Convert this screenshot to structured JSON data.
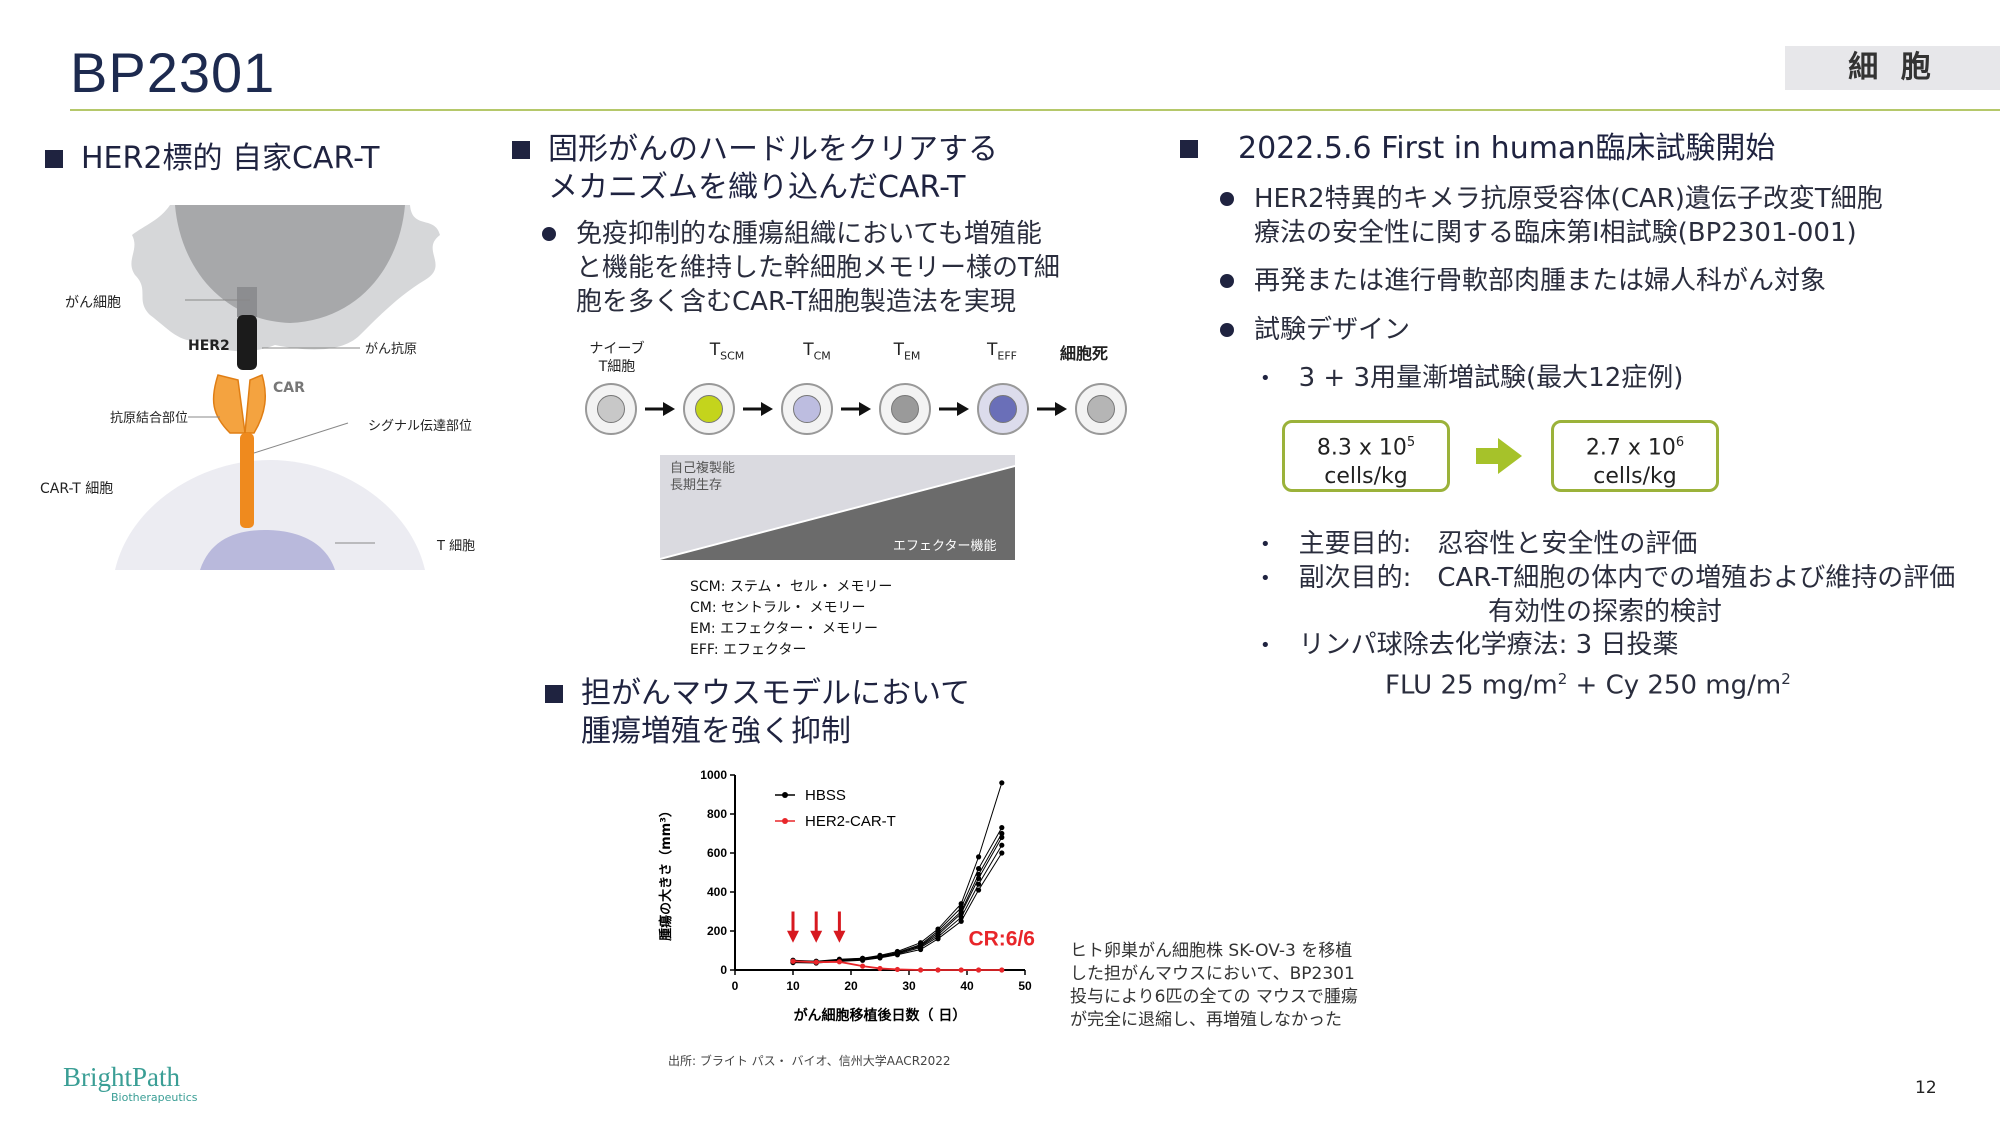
{
  "title": "BP2301",
  "category": "細 胞",
  "page_number": "12",
  "logo": {
    "name": "BrightPath",
    "sub": "Biotherapeutics"
  },
  "left": {
    "heading": "HER2標的 自家CAR-T",
    "labels": {
      "cancer_cell": "がん細胞",
      "her2": "HER2",
      "antigen": "がん抗原",
      "car": "CAR",
      "binding_site": "抗原結合部位",
      "signal_site": "シグナル伝達部位",
      "cart_cell": "CAR-T 細胞",
      "t_cell": "T 細胞"
    }
  },
  "middle": {
    "heading_line1": "固形がんのハードルをクリアする",
    "heading_line2": "メカニズムを織り込んだCAR-T",
    "bullet_line1": "免疫抑制的な腫瘍組織においても増殖能",
    "bullet_line2": "と機能を維持した幹細胞メモリー様のT細",
    "bullet_line3": "胞を多く含むCAR-T細胞製造法を実現",
    "stages": [
      {
        "label": "ナイーブ\nT細胞",
        "main": "",
        "sub": ""
      },
      {
        "label": "",
        "main": "T",
        "sub": "SCM"
      },
      {
        "label": "",
        "main": "T",
        "sub": "CM"
      },
      {
        "label": "",
        "main": "T",
        "sub": "EM"
      },
      {
        "label": "",
        "main": "T",
        "sub": "EFF"
      },
      {
        "label": "細胞死",
        "main": "",
        "sub": ""
      }
    ],
    "gradient_top_line1": "自己複製能",
    "gradient_top_line2": "長期生存",
    "gradient_bottom": "エフェクター機能",
    "legend_lines": [
      "SCM: ステム・ セル・ メモリー",
      "CM:  セントラル・ メモリー",
      "EM:  エフェクター・ メモリー",
      "EFF: エフェクター"
    ],
    "heading2_line1": "担がんマウスモデルにおいて",
    "heading2_line2": "腫瘍増殖を強く抑制",
    "source": "出所: ブライト パス・ バイオ、信州大学AACR2022",
    "chart_note_lines": [
      "ヒト卵巣がん細胞株 SK-OV-3 を移植",
      "した担がんマウスにおいて、BP2301",
      "投与により6匹の全ての マウスで腫瘍",
      "が完全に退縮し、再増殖しなかった"
    ]
  },
  "chart_data": {
    "type": "line",
    "xlabel": "がん細胞移植後日数（ 日）",
    "ylabel": "腫瘍の大きさ（mm³）",
    "xlim": [
      0,
      50
    ],
    "ylim": [
      0,
      1000
    ],
    "xticks": [
      0,
      10,
      20,
      30,
      40,
      50
    ],
    "yticks": [
      0,
      200,
      400,
      600,
      800,
      1000
    ],
    "annotation": "CR:6/6",
    "dosing_days": [
      10,
      14,
      18
    ],
    "colors": {
      "HBSS": "#000000",
      "HER2-CAR-T": "#e8262a",
      "arrow": "#d71920"
    },
    "x": [
      10,
      14,
      18,
      22,
      25,
      28,
      32,
      35,
      39,
      42,
      46
    ],
    "series": [
      {
        "name": "HBSS",
        "group": "HBSS",
        "values": [
          50,
          45,
          55,
          60,
          75,
          95,
          140,
          210,
          340,
          580,
          960
        ]
      },
      {
        "name": "",
        "group": "HBSS",
        "values": [
          45,
          42,
          50,
          58,
          70,
          90,
          130,
          200,
          320,
          520,
          730
        ]
      },
      {
        "name": "",
        "group": "HBSS",
        "values": [
          40,
          40,
          48,
          55,
          68,
          85,
          125,
          190,
          300,
          490,
          700
        ]
      },
      {
        "name": "",
        "group": "HBSS",
        "values": [
          48,
          44,
          52,
          60,
          72,
          88,
          120,
          180,
          290,
          470,
          680
        ]
      },
      {
        "name": "",
        "group": "HBSS",
        "values": [
          42,
          38,
          46,
          54,
          66,
          82,
          115,
          170,
          270,
          440,
          640
        ]
      },
      {
        "name": "",
        "group": "HBSS",
        "values": [
          38,
          36,
          44,
          50,
          62,
          78,
          105,
          160,
          250,
          410,
          600
        ]
      },
      {
        "name": "HER2-CAR-T",
        "group": "CAR-T",
        "values": [
          45,
          40,
          42,
          20,
          8,
          3,
          0,
          0,
          0,
          0,
          0
        ]
      }
    ]
  },
  "right": {
    "heading": "2022.5.6 First in human臨床試験開始",
    "bullets": [
      "HER2特異的キメラ抗原受容体(CAR)遺伝子改変T細胞",
      "療法の安全性に関する臨床第Ⅰ相試験(BP2301-001)",
      "再発または進行骨軟部肉腫または婦人科がん対象",
      "試験デザイン"
    ],
    "sub_bullet": "3 + 3用量漸増試験(最大12症例)",
    "dose_low": {
      "value": "8.3 x 10",
      "exp": "5",
      "unit": "cells/kg"
    },
    "dose_high": {
      "value": "2.7 x 10",
      "exp": "6",
      "unit": "cells/kg"
    },
    "arrow_color": "#a6c22a",
    "primary": "主要目的:　忍容性と安全性の評価",
    "secondary": "副次目的:　CAR-T細胞の体内での増殖および維持の評価",
    "secondary2": "有効性の探索的検討",
    "lymph": "リンパ球除去化学療法: 3 日投薬",
    "regimen_flu": "FLU 25 mg/m",
    "regimen_sup1": "2",
    "regimen_cy": " + Cy 250 mg/m",
    "regimen_sup2": "2"
  }
}
